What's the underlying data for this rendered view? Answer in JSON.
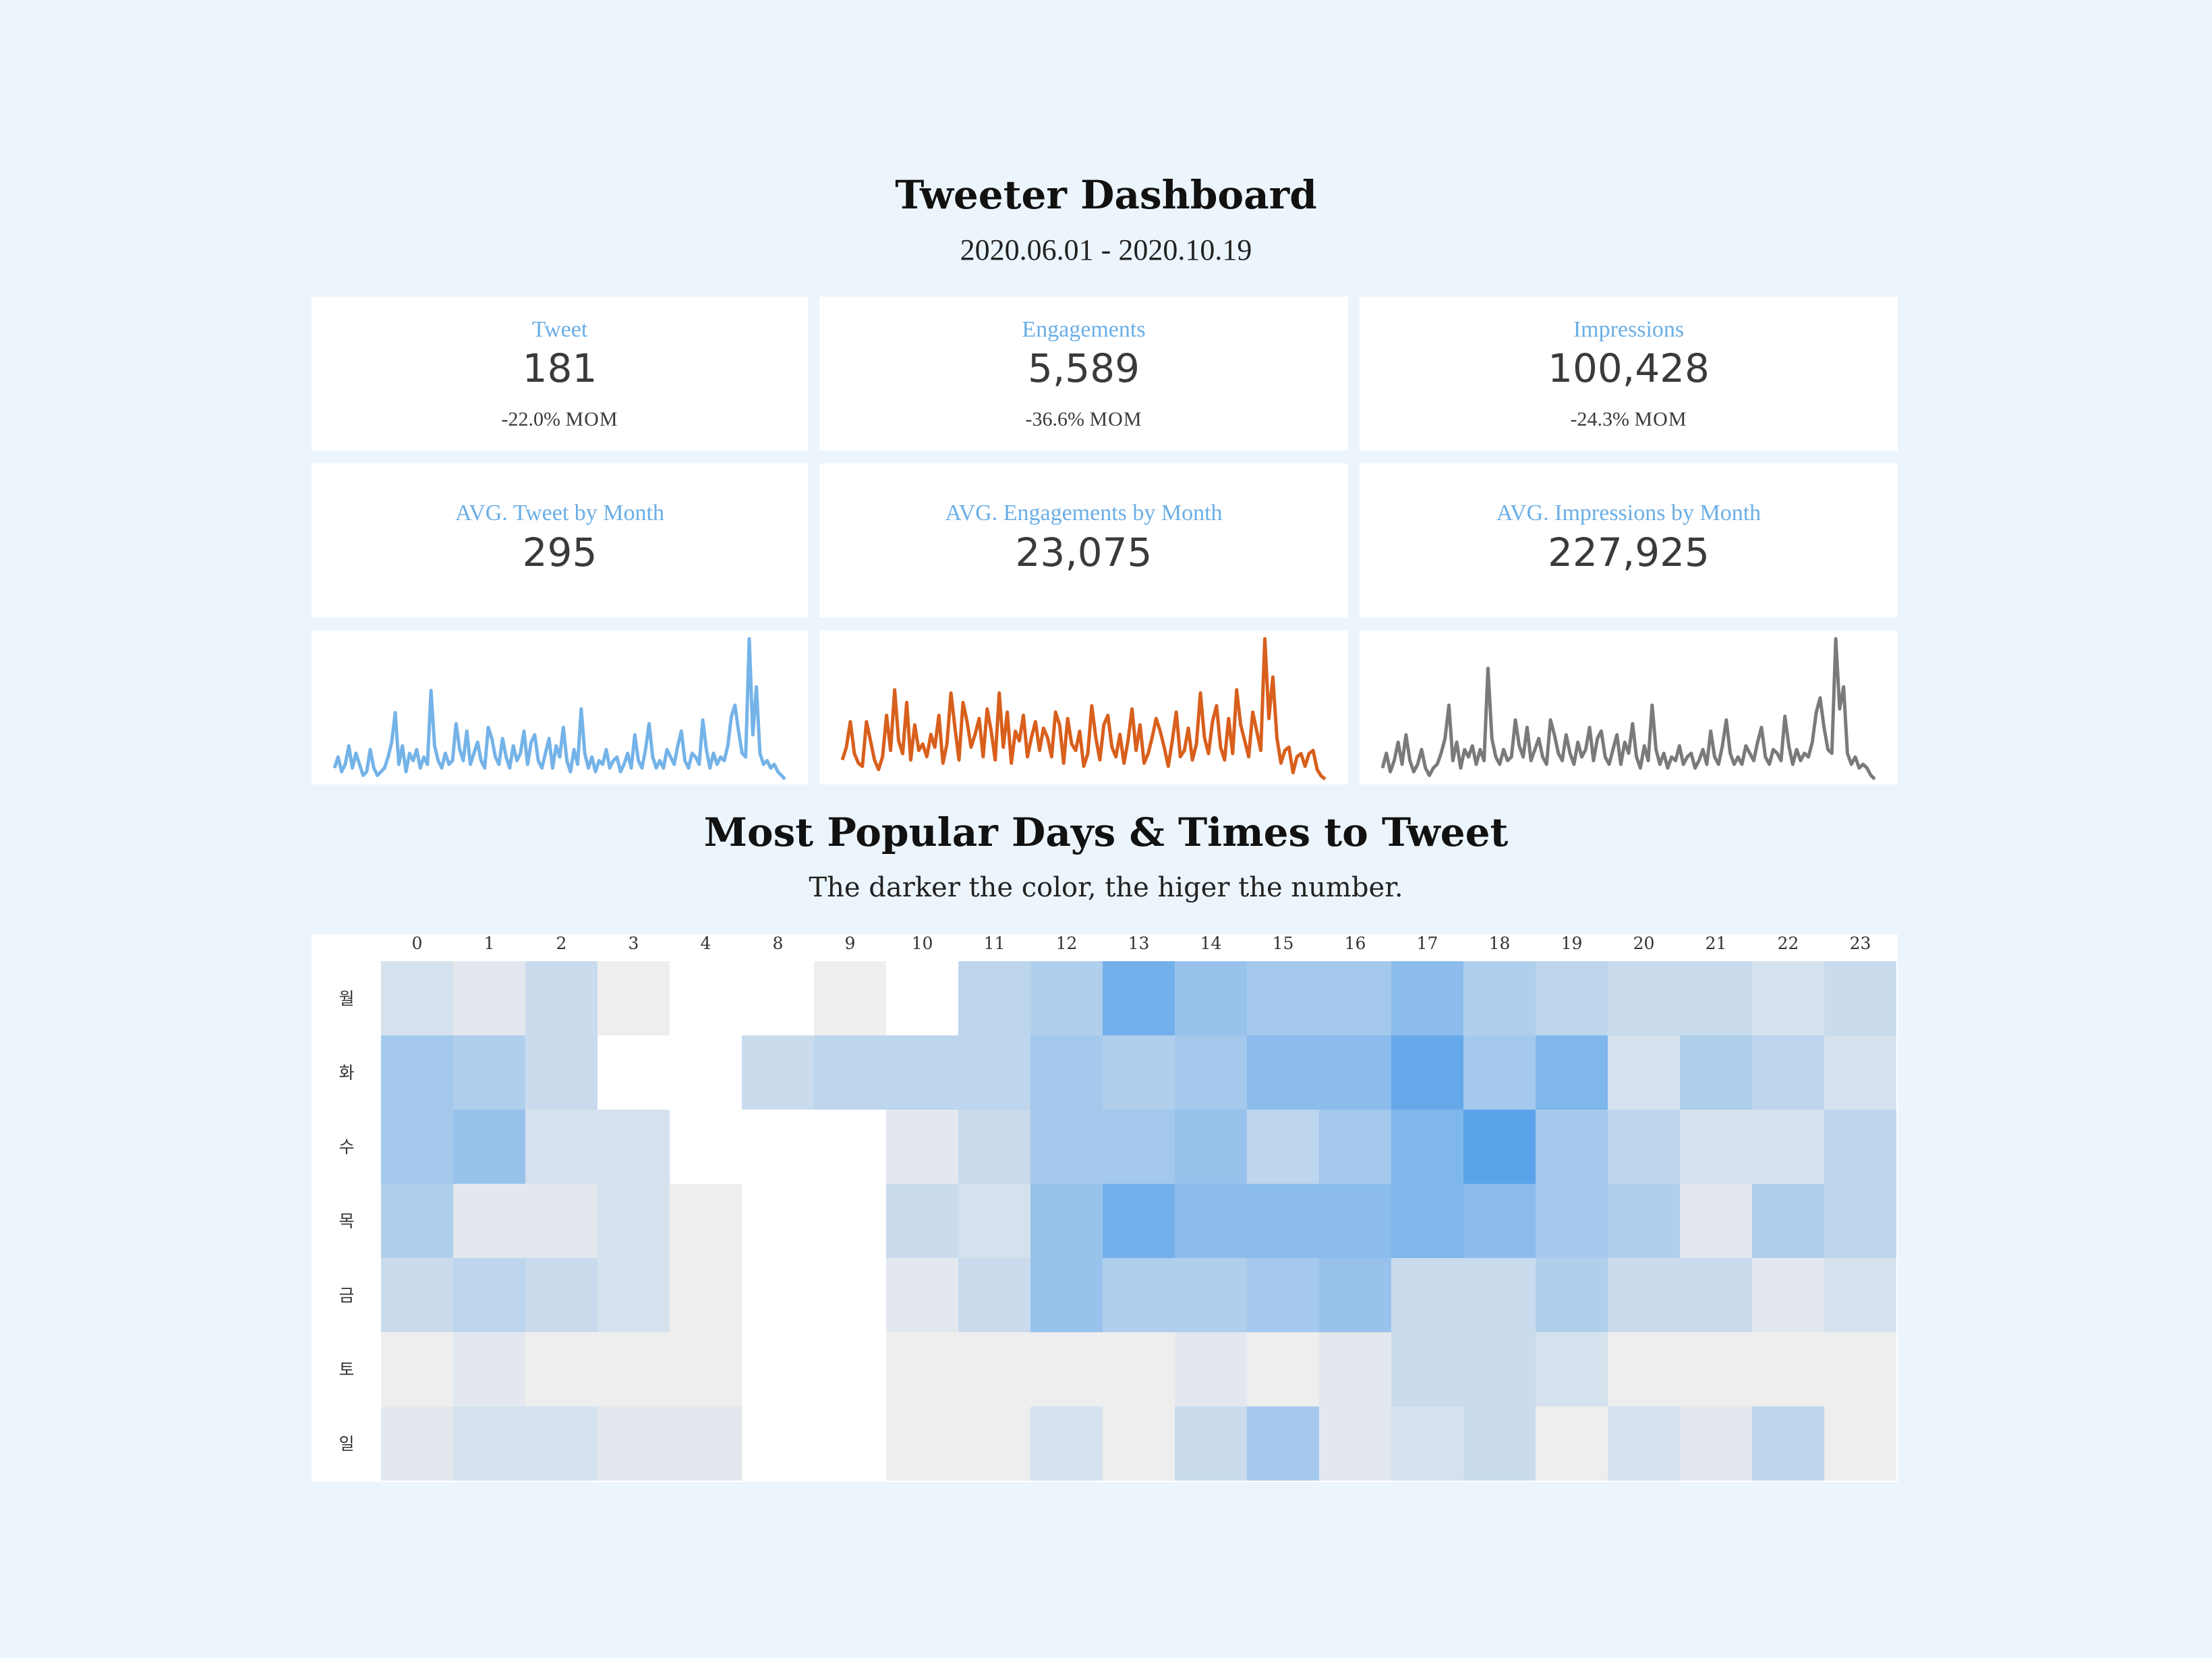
{
  "header": {
    "title": "Tweeter Dashboard",
    "date_range": "2020.06.01 - 2020.10.19"
  },
  "kpis": [
    {
      "label": "Tweet",
      "value": "181",
      "delta": "-22.0%",
      "delta_unit": "MOM"
    },
    {
      "label": "Engagements",
      "value": "5,589",
      "delta": "-36.6%",
      "delta_unit": "MOM"
    },
    {
      "label": "Impressions",
      "value": "100,428",
      "delta": "-24.3%",
      "delta_unit": "MOM"
    }
  ],
  "averages": [
    {
      "label": "AVG. Tweet by Month",
      "value": "295"
    },
    {
      "label": "AVG. Engagements by Month",
      "value": "23,075"
    },
    {
      "label": "AVG. Impressions by Month",
      "value": "227,925"
    }
  ],
  "colors": {
    "background": "#ecf5fc",
    "card": "#ffffff",
    "label_blue": "#6aaee6",
    "tweet_line": "#74b3e8",
    "engagement_line": "#d85f1c",
    "impression_line": "#7a7a7a",
    "heat_low": "#eeeeee",
    "heat_high": "#5aa3ea"
  },
  "heatmap_section": {
    "title": "Most Popular Days & Times to Tweet",
    "subtitle": "The darker the color, the higer the number."
  },
  "chart_data": [
    {
      "type": "line",
      "name": "tweet-sparkline",
      "series": [
        {
          "values": [
            3,
            6,
            2,
            4,
            9,
            3,
            7,
            4,
            1,
            2,
            8,
            3,
            1,
            2,
            3,
            6,
            10,
            18,
            4,
            9,
            2,
            7,
            5,
            8,
            3,
            6,
            4,
            24,
            9,
            5,
            3,
            7,
            4,
            5,
            15,
            8,
            5,
            13,
            4,
            7,
            10,
            5,
            3,
            14,
            11,
            6,
            4,
            11,
            6,
            3,
            9,
            5,
            7,
            13,
            4,
            10,
            12,
            5,
            3,
            7,
            11,
            3,
            9,
            6,
            14,
            5,
            2,
            8,
            4,
            19,
            7,
            3,
            6,
            2,
            5,
            4,
            8,
            3,
            5,
            6,
            2,
            4,
            7,
            3,
            12,
            5,
            3,
            8,
            15,
            6,
            3,
            5,
            3,
            8,
            6,
            4,
            9,
            13,
            5,
            3,
            7,
            6,
            4,
            16,
            8,
            3,
            7,
            4,
            6,
            5,
            9,
            17,
            20,
            13,
            7,
            6,
            38,
            12,
            25,
            7,
            4,
            5,
            3,
            4,
            2,
            1,
            0
          ]
        }
      ]
    },
    {
      "type": "line",
      "name": "engagement-sparkline",
      "series": [
        {
          "values": [
            6,
            10,
            18,
            8,
            5,
            4,
            18,
            12,
            6,
            3,
            7,
            20,
            9,
            28,
            12,
            8,
            24,
            6,
            17,
            9,
            11,
            7,
            14,
            10,
            20,
            5,
            11,
            27,
            16,
            6,
            24,
            18,
            10,
            14,
            19,
            7,
            22,
            15,
            6,
            27,
            10,
            21,
            5,
            15,
            12,
            20,
            7,
            13,
            18,
            9,
            16,
            13,
            7,
            21,
            17,
            5,
            19,
            11,
            9,
            15,
            4,
            8,
            23,
            13,
            6,
            17,
            20,
            10,
            7,
            14,
            5,
            12,
            22,
            9,
            17,
            5,
            8,
            13,
            19,
            15,
            10,
            4,
            12,
            21,
            7,
            9,
            16,
            6,
            11,
            27,
            13,
            8,
            18,
            23,
            10,
            6,
            19,
            8,
            28,
            17,
            12,
            7,
            21,
            15,
            9,
            44,
            19,
            32,
            13,
            5,
            9,
            10,
            2,
            7,
            8,
            4,
            8,
            9,
            3,
            1,
            0
          ]
        }
      ]
    },
    {
      "type": "line",
      "name": "impression-sparkline",
      "series": [
        {
          "values": [
            3,
            7,
            2,
            5,
            10,
            4,
            12,
            5,
            2,
            4,
            8,
            3,
            1,
            3,
            4,
            7,
            11,
            20,
            5,
            10,
            3,
            8,
            6,
            9,
            4,
            8,
            5,
            30,
            11,
            6,
            4,
            8,
            5,
            6,
            16,
            9,
            6,
            14,
            5,
            8,
            11,
            6,
            4,
            16,
            12,
            7,
            5,
            12,
            7,
            4,
            10,
            6,
            8,
            14,
            5,
            11,
            13,
            6,
            4,
            8,
            12,
            4,
            10,
            7,
            15,
            6,
            3,
            9,
            5,
            20,
            8,
            4,
            7,
            3,
            6,
            5,
            9,
            4,
            6,
            7,
            3,
            5,
            8,
            4,
            13,
            6,
            4,
            9,
            16,
            7,
            4,
            6,
            4,
            9,
            7,
            5,
            10,
            14,
            6,
            4,
            8,
            7,
            5,
            17,
            9,
            4,
            8,
            5,
            7,
            6,
            10,
            18,
            22,
            14,
            8,
            7,
            38,
            19,
            25,
            7,
            4,
            6,
            3,
            4,
            3,
            1,
            0
          ]
        }
      ]
    },
    {
      "type": "heatmap",
      "name": "popular-times-heatmap",
      "x": [
        "0",
        "1",
        "2",
        "3",
        "4",
        "8",
        "9",
        "10",
        "11",
        "12",
        "13",
        "14",
        "15",
        "16",
        "17",
        "18",
        "19",
        "20",
        "21",
        "22",
        "23"
      ],
      "y": [
        "월",
        "화",
        "수",
        "목",
        "금",
        "토",
        "일"
      ],
      "values": [
        [
          2,
          1,
          3,
          0,
          null,
          null,
          0,
          null,
          4,
          5,
          10,
          7,
          6,
          6,
          8,
          5,
          4,
          3,
          3,
          2,
          3
        ],
        [
          6,
          5,
          3,
          null,
          null,
          3,
          4,
          4,
          4,
          6,
          5,
          6,
          8,
          8,
          11,
          6,
          9,
          2,
          5,
          4,
          2
        ],
        [
          6,
          7,
          2,
          2,
          null,
          null,
          null,
          1,
          3,
          6,
          6,
          7,
          4,
          6,
          9,
          12,
          6,
          4,
          2,
          2,
          4
        ],
        [
          5,
          1,
          1,
          2,
          0,
          null,
          null,
          3,
          2,
          7,
          10,
          8,
          8,
          8,
          9,
          8,
          6,
          5,
          1,
          5,
          4
        ],
        [
          3,
          4,
          3,
          2,
          0,
          null,
          null,
          1,
          3,
          7,
          5,
          5,
          6,
          7,
          3,
          3,
          5,
          3,
          3,
          1,
          2
        ],
        [
          0,
          1,
          0,
          0,
          0,
          null,
          null,
          0,
          0,
          0,
          0,
          1,
          0,
          1,
          3,
          3,
          2,
          0,
          0,
          0,
          0
        ],
        [
          1,
          2,
          2,
          1,
          1,
          null,
          null,
          0,
          0,
          2,
          0,
          3,
          6,
          1,
          2,
          3,
          0,
          2,
          1,
          4,
          0
        ]
      ]
    }
  ]
}
